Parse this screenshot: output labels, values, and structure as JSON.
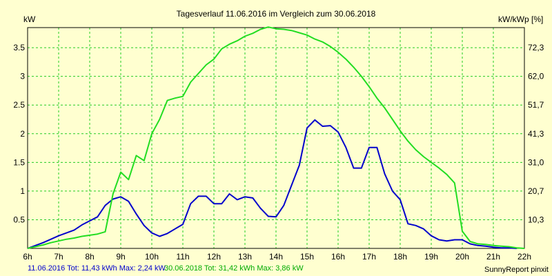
{
  "chart_data": {
    "type": "line",
    "title": "Tagesverlauf 11.06.2016 im Vergleich zum 30.06.2018",
    "ylabel_left": "kW",
    "ylabel_right": "kW/kWp [%]",
    "xlim": [
      6,
      22
    ],
    "ylim": [
      0,
      3.85
    ],
    "x_ticks": [
      {
        "v": 6,
        "label": "6h"
      },
      {
        "v": 7,
        "label": "7h"
      },
      {
        "v": 8,
        "label": "8h"
      },
      {
        "v": 9,
        "label": "9h"
      },
      {
        "v": 10,
        "label": "10h"
      },
      {
        "v": 11,
        "label": "11h"
      },
      {
        "v": 12,
        "label": "12h"
      },
      {
        "v": 13,
        "label": "13h"
      },
      {
        "v": 14,
        "label": "14h"
      },
      {
        "v": 15,
        "label": "15h"
      },
      {
        "v": 16,
        "label": "16h"
      },
      {
        "v": 17,
        "label": "17h"
      },
      {
        "v": 18,
        "label": "18h"
      },
      {
        "v": 19,
        "label": "19h"
      },
      {
        "v": 20,
        "label": "20h"
      },
      {
        "v": 21,
        "label": "21h"
      },
      {
        "v": 22,
        "label": "22h"
      }
    ],
    "y_ticks_left": [
      {
        "v": 0.5,
        "label": "0.5"
      },
      {
        "v": 1,
        "label": "1"
      },
      {
        "v": 1.5,
        "label": "1.5"
      },
      {
        "v": 2,
        "label": "2"
      },
      {
        "v": 2.5,
        "label": "2.5"
      },
      {
        "v": 3,
        "label": "3"
      },
      {
        "v": 3.5,
        "label": "3.5"
      }
    ],
    "y_ticks_right": [
      {
        "v": 0.5,
        "label": "10,3"
      },
      {
        "v": 1,
        "label": "20,7"
      },
      {
        "v": 1.5,
        "label": "31,0"
      },
      {
        "v": 2,
        "label": "41,3"
      },
      {
        "v": 2.5,
        "label": "51,7"
      },
      {
        "v": 3,
        "label": "62,0"
      },
      {
        "v": 3.5,
        "label": "72,3"
      }
    ],
    "grid": true,
    "series": [
      {
        "name": "11.06.2016",
        "color": "#0000cc",
        "points": [
          [
            6.0,
            0.0
          ],
          [
            6.25,
            0.05
          ],
          [
            6.5,
            0.1
          ],
          [
            6.75,
            0.16
          ],
          [
            7.0,
            0.22
          ],
          [
            7.25,
            0.27
          ],
          [
            7.5,
            0.32
          ],
          [
            7.75,
            0.41
          ],
          [
            8.0,
            0.48
          ],
          [
            8.25,
            0.55
          ],
          [
            8.5,
            0.75
          ],
          [
            8.75,
            0.86
          ],
          [
            9.0,
            0.9
          ],
          [
            9.25,
            0.82
          ],
          [
            9.5,
            0.6
          ],
          [
            9.75,
            0.4
          ],
          [
            10.0,
            0.27
          ],
          [
            10.25,
            0.21
          ],
          [
            10.5,
            0.26
          ],
          [
            10.75,
            0.34
          ],
          [
            11.0,
            0.42
          ],
          [
            11.25,
            0.78
          ],
          [
            11.5,
            0.91
          ],
          [
            11.75,
            0.91
          ],
          [
            12.0,
            0.78
          ],
          [
            12.25,
            0.78
          ],
          [
            12.5,
            0.95
          ],
          [
            12.75,
            0.85
          ],
          [
            13.0,
            0.9
          ],
          [
            13.25,
            0.88
          ],
          [
            13.5,
            0.7
          ],
          [
            13.75,
            0.56
          ],
          [
            14.0,
            0.55
          ],
          [
            14.25,
            0.75
          ],
          [
            14.5,
            1.1
          ],
          [
            14.75,
            1.45
          ],
          [
            15.0,
            2.1
          ],
          [
            15.25,
            2.24
          ],
          [
            15.5,
            2.13
          ],
          [
            15.75,
            2.14
          ],
          [
            16.0,
            2.03
          ],
          [
            16.25,
            1.76
          ],
          [
            16.5,
            1.4
          ],
          [
            16.75,
            1.4
          ],
          [
            17.0,
            1.76
          ],
          [
            17.25,
            1.76
          ],
          [
            17.5,
            1.3
          ],
          [
            17.75,
            1.0
          ],
          [
            18.0,
            0.85
          ],
          [
            18.25,
            0.43
          ],
          [
            18.5,
            0.4
          ],
          [
            18.75,
            0.34
          ],
          [
            19.0,
            0.22
          ],
          [
            19.25,
            0.15
          ],
          [
            19.5,
            0.13
          ],
          [
            19.75,
            0.15
          ],
          [
            20.0,
            0.15
          ],
          [
            20.25,
            0.08
          ],
          [
            20.5,
            0.05
          ],
          [
            20.75,
            0.04
          ],
          [
            21.0,
            0.02
          ],
          [
            21.25,
            0.01
          ],
          [
            21.5,
            0.01
          ],
          [
            21.75,
            0.0
          ]
        ]
      },
      {
        "name": "30.06.2018",
        "color": "#22dd22",
        "points": [
          [
            6.0,
            0.0
          ],
          [
            6.25,
            0.03
          ],
          [
            6.5,
            0.06
          ],
          [
            6.75,
            0.1
          ],
          [
            7.0,
            0.13
          ],
          [
            7.25,
            0.16
          ],
          [
            7.5,
            0.18
          ],
          [
            7.75,
            0.21
          ],
          [
            8.0,
            0.23
          ],
          [
            8.25,
            0.25
          ],
          [
            8.5,
            0.29
          ],
          [
            8.75,
            0.95
          ],
          [
            9.0,
            1.33
          ],
          [
            9.25,
            1.2
          ],
          [
            9.5,
            1.62
          ],
          [
            9.75,
            1.53
          ],
          [
            10.0,
            2.0
          ],
          [
            10.25,
            2.25
          ],
          [
            10.5,
            2.58
          ],
          [
            10.75,
            2.62
          ],
          [
            11.0,
            2.65
          ],
          [
            11.25,
            2.9
          ],
          [
            11.5,
            3.05
          ],
          [
            11.75,
            3.2
          ],
          [
            12.0,
            3.3
          ],
          [
            12.25,
            3.48
          ],
          [
            12.5,
            3.56
          ],
          [
            12.75,
            3.62
          ],
          [
            13.0,
            3.7
          ],
          [
            13.25,
            3.75
          ],
          [
            13.5,
            3.82
          ],
          [
            13.75,
            3.86
          ],
          [
            14.0,
            3.83
          ],
          [
            14.25,
            3.82
          ],
          [
            14.5,
            3.8
          ],
          [
            14.75,
            3.76
          ],
          [
            15.0,
            3.72
          ],
          [
            15.25,
            3.65
          ],
          [
            15.5,
            3.6
          ],
          [
            15.75,
            3.52
          ],
          [
            16.0,
            3.42
          ],
          [
            16.25,
            3.3
          ],
          [
            16.5,
            3.16
          ],
          [
            16.75,
            3.0
          ],
          [
            17.0,
            2.82
          ],
          [
            17.25,
            2.62
          ],
          [
            17.5,
            2.45
          ],
          [
            17.75,
            2.25
          ],
          [
            18.0,
            2.05
          ],
          [
            18.25,
            1.87
          ],
          [
            18.5,
            1.72
          ],
          [
            18.75,
            1.6
          ],
          [
            19.0,
            1.5
          ],
          [
            19.25,
            1.4
          ],
          [
            19.5,
            1.29
          ],
          [
            19.75,
            1.14
          ],
          [
            20.0,
            0.3
          ],
          [
            20.25,
            0.12
          ],
          [
            20.5,
            0.08
          ],
          [
            20.75,
            0.07
          ],
          [
            21.0,
            0.05
          ],
          [
            21.25,
            0.04
          ],
          [
            21.5,
            0.03
          ],
          [
            21.75,
            0.01
          ],
          [
            22.0,
            0.0
          ]
        ]
      }
    ],
    "footer": {
      "series1_text": "11.06.2016 Tot: 11,43 kWh Max: 2,24 kW",
      "series2_text": "30.06.2018 Tot: 31,42 kWh Max: 3,86 kW",
      "credit": "SunnyReport pinxit"
    }
  }
}
